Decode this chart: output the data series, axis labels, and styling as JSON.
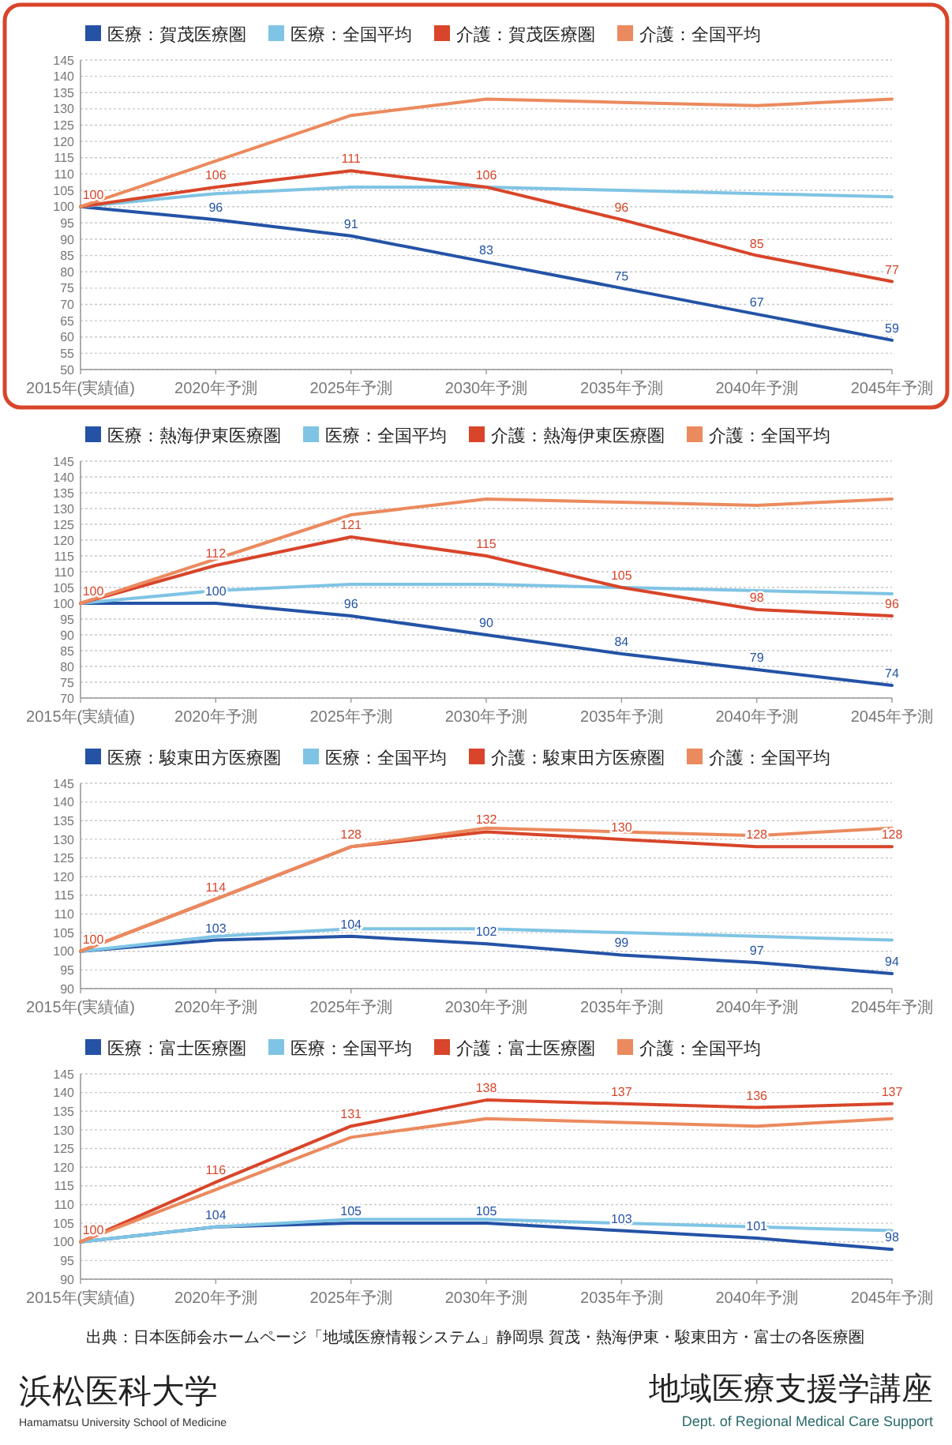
{
  "chart_data": [
    {
      "type": "line",
      "categories": [
        "2015年(実績値)",
        "2020年予測",
        "2025年予測",
        "2030年予測",
        "2035年予測",
        "2040年予測",
        "2045年予測"
      ],
      "ylim": [
        50,
        145
      ],
      "yticks": [
        50,
        55,
        60,
        65,
        70,
        75,
        80,
        85,
        90,
        95,
        100,
        105,
        110,
        115,
        120,
        125,
        130,
        135,
        140,
        145
      ],
      "grid": "y",
      "legend": "top left",
      "series": [
        {
          "name": "医療：賀茂医療圏",
          "color": "#2453a6",
          "values": [
            100,
            96,
            91,
            83,
            75,
            67,
            59
          ],
          "value_labels": [
            "100",
            "96",
            "91",
            "83",
            "75",
            "67",
            "59"
          ]
        },
        {
          "name": "医療：全国平均",
          "color": "#7fc4e4",
          "values": [
            100,
            104,
            106,
            106,
            105,
            104,
            103
          ]
        },
        {
          "name": "介護：賀茂医療圏",
          "color": "#d8452a",
          "values": [
            100,
            106,
            111,
            106,
            96,
            85,
            77
          ],
          "value_labels": [
            "100",
            "106",
            "111",
            "106",
            "96",
            "85",
            "77"
          ]
        },
        {
          "name": "介護：全国平均",
          "color": "#eb8a5e",
          "values": [
            100,
            114,
            128,
            133,
            132,
            131,
            133
          ]
        }
      ]
    },
    {
      "type": "line",
      "categories": [
        "2015年(実績値)",
        "2020年予測",
        "2025年予測",
        "2030年予測",
        "2035年予測",
        "2040年予測",
        "2045年予測"
      ],
      "ylim": [
        70,
        145
      ],
      "yticks": [
        70,
        75,
        80,
        85,
        90,
        95,
        100,
        105,
        110,
        115,
        120,
        125,
        130,
        135,
        140,
        145
      ],
      "grid": "y",
      "legend": "top left",
      "series": [
        {
          "name": "医療：熱海伊東医療圏",
          "color": "#2453a6",
          "values": [
            100,
            100,
            96,
            90,
            84,
            79,
            74
          ],
          "value_labels": [
            "100",
            "100",
            "96",
            "90",
            "84",
            "79",
            "74"
          ]
        },
        {
          "name": "医療：全国平均",
          "color": "#7fc4e4",
          "values": [
            100,
            104,
            106,
            106,
            105,
            104,
            103
          ]
        },
        {
          "name": "介護：熱海伊東医療圏",
          "color": "#d8452a",
          "values": [
            100,
            112,
            121,
            115,
            105,
            98,
            96
          ],
          "value_labels": [
            "100",
            "112",
            "121",
            "115",
            "105",
            "98",
            "96"
          ]
        },
        {
          "name": "介護：全国平均",
          "color": "#eb8a5e",
          "values": [
            100,
            114,
            128,
            133,
            132,
            131,
            133
          ]
        }
      ]
    },
    {
      "type": "line",
      "categories": [
        "2015年(実績値)",
        "2020年予測",
        "2025年予測",
        "2030年予測",
        "2035年予測",
        "2040年予測",
        "2045年予測"
      ],
      "ylim": [
        90,
        145
      ],
      "yticks": [
        90,
        95,
        100,
        105,
        110,
        115,
        120,
        125,
        130,
        135,
        140,
        145
      ],
      "grid": "y",
      "legend": "top left",
      "series": [
        {
          "name": "医療：駿東田方医療圏",
          "color": "#2453a6",
          "values": [
            100,
            103,
            104,
            102,
            99,
            97,
            94
          ],
          "value_labels": [
            "100",
            "103",
            "104",
            "102",
            "99",
            "97",
            "94"
          ]
        },
        {
          "name": "医療：全国平均",
          "color": "#7fc4e4",
          "values": [
            100,
            104,
            106,
            106,
            105,
            104,
            103
          ]
        },
        {
          "name": "介護：駿東田方医療圏",
          "color": "#d8452a",
          "values": [
            100,
            114,
            128,
            132,
            130,
            128,
            128
          ],
          "value_labels": [
            "100",
            "114",
            "128",
            "132",
            "130",
            "128",
            "128"
          ]
        },
        {
          "name": "介護：全国平均",
          "color": "#eb8a5e",
          "values": [
            100,
            114,
            128,
            133,
            132,
            131,
            133
          ]
        }
      ]
    },
    {
      "type": "line",
      "categories": [
        "2015年(実績値)",
        "2020年予測",
        "2025年予測",
        "2030年予測",
        "2035年予測",
        "2040年予測",
        "2045年予測"
      ],
      "ylim": [
        90,
        145
      ],
      "yticks": [
        90,
        95,
        100,
        105,
        110,
        115,
        120,
        125,
        130,
        135,
        140,
        145
      ],
      "grid": "y",
      "legend": "top left",
      "series": [
        {
          "name": "医療：富士医療圏",
          "color": "#2453a6",
          "values": [
            100,
            104,
            105,
            105,
            103,
            101,
            98
          ],
          "value_labels": [
            "100",
            "104",
            "105",
            "105",
            "103",
            "101",
            "98"
          ]
        },
        {
          "name": "医療：全国平均",
          "color": "#7fc4e4",
          "values": [
            100,
            104,
            106,
            106,
            105,
            104,
            103
          ]
        },
        {
          "name": "介護：富士医療圏",
          "color": "#d8452a",
          "values": [
            100,
            116,
            131,
            138,
            137,
            136,
            137
          ],
          "value_labels": [
            "100",
            "116",
            "131",
            "138",
            "137",
            "136",
            "137"
          ]
        },
        {
          "name": "介護：全国平均",
          "color": "#eb8a5e",
          "values": [
            100,
            114,
            128,
            133,
            132,
            131,
            133
          ]
        }
      ]
    },
    {
      "type": "other",
      "annotations": [
        "出典：日本医師会ホームページ「地域医療情報システム」静岡県 賀茂・熱海伊東・駿東田方・富士の各医療圏",
        "浜松医科大学",
        "Hamamatsu University School of Medicine",
        "地域医療支援学講座",
        "Dept. of Regional Medical Care Support"
      ]
    }
  ]
}
